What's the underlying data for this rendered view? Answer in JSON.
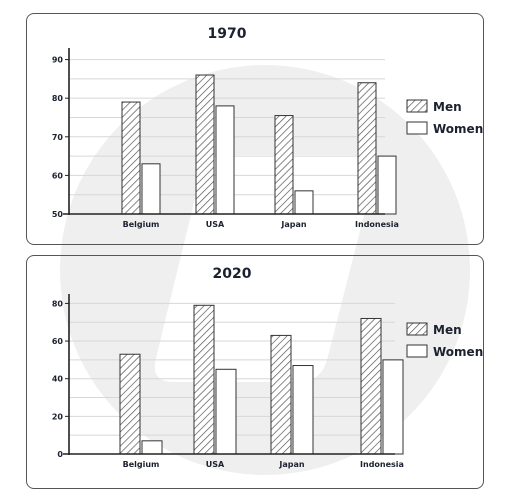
{
  "chart_data": [
    {
      "type": "bar",
      "title": "1970",
      "categories": [
        "Belgium",
        "USA",
        "Japan",
        "Indonesia"
      ],
      "series": [
        {
          "name": "Men",
          "values": [
            79,
            86,
            75.5,
            84
          ]
        },
        {
          "name": "Women",
          "values": [
            63,
            78,
            56,
            65
          ]
        }
      ],
      "yticks": [
        50,
        60,
        70,
        80,
        90
      ],
      "ylim": [
        50,
        93
      ],
      "grid": true,
      "legend": "right",
      "xlabel": "",
      "ylabel": ""
    },
    {
      "type": "bar",
      "title": "2020",
      "categories": [
        "Belgium",
        "USA",
        "Japan",
        "Indonesia"
      ],
      "series": [
        {
          "name": "Men",
          "values": [
            53,
            79,
            63,
            72
          ]
        },
        {
          "name": "Women",
          "values": [
            7,
            45,
            47,
            50
          ]
        }
      ],
      "yticks": [
        0,
        20,
        40,
        60,
        80
      ],
      "ylim": [
        0,
        85
      ],
      "grid": true,
      "legend": "right",
      "xlabel": "",
      "ylabel": ""
    }
  ],
  "colors": {
    "men_pattern": "diagonal-hatch",
    "women_fill": "#ffffff",
    "text": "#1c2130"
  }
}
